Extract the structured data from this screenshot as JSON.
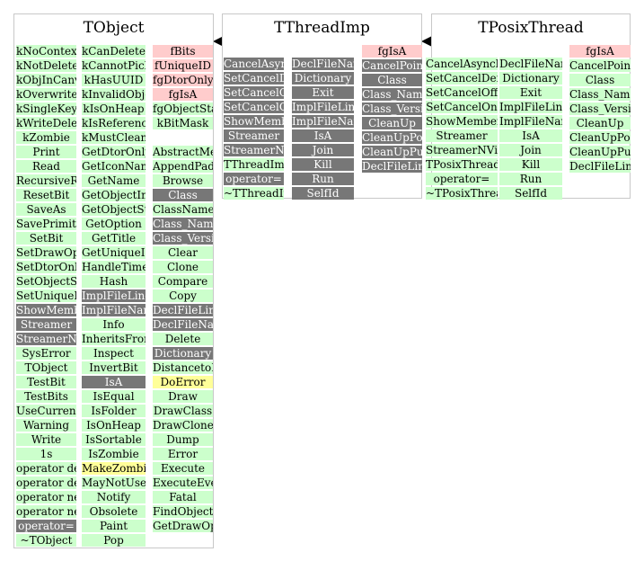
{
  "diagram": {
    "boxes": [
      {
        "title": "TObject",
        "columns": [
          [
            [
              "kNoContextMenu",
              "green"
            ],
            [
              "kNotDeleted",
              "green"
            ],
            [
              "kObjInCanvas",
              "green"
            ],
            [
              "kOverwrite",
              "green"
            ],
            [
              "kSingleKey",
              "green"
            ],
            [
              "kWriteDelete",
              "green"
            ],
            [
              "kZombie",
              "green"
            ],
            [
              "Print",
              "green"
            ],
            [
              "Read",
              "green"
            ],
            [
              "RecursiveRemove",
              "green"
            ],
            [
              "ResetBit",
              "green"
            ],
            [
              "SaveAs",
              "green"
            ],
            [
              "SavePrimitive",
              "green"
            ],
            [
              "SetBit",
              "green"
            ],
            [
              "SetDrawOption",
              "green"
            ],
            [
              "SetDtorOnly",
              "green"
            ],
            [
              "SetObjectStat",
              "green"
            ],
            [
              "SetUniqueID",
              "green"
            ],
            [
              "ShowMembers",
              "gray"
            ],
            [
              "Streamer",
              "gray"
            ],
            [
              "StreamerNVirtual",
              "gray"
            ],
            [
              "SysError",
              "green"
            ],
            [
              "TObject",
              "green"
            ],
            [
              "TestBit",
              "green"
            ],
            [
              "TestBits",
              "green"
            ],
            [
              "UseCurrentStyle",
              "green"
            ],
            [
              "Warning",
              "green"
            ],
            [
              "Write",
              "green"
            ],
            [
              "1s",
              "green"
            ],
            [
              "operator delete",
              "green"
            ],
            [
              "operator delete[]",
              "green"
            ],
            [
              "operator new",
              "green"
            ],
            [
              "operator new[]",
              "green"
            ],
            [
              "operator=",
              "gray"
            ],
            [
              "~TObject",
              "green"
            ]
          ],
          [
            [
              "kCanDelete",
              "green"
            ],
            [
              "kCannotPick",
              "green"
            ],
            [
              "kHasUUID",
              "green"
            ],
            [
              "kInvalidObject",
              "green"
            ],
            [
              "kIsOnHeap",
              "green"
            ],
            [
              "kIsReferenced",
              "green"
            ],
            [
              "kMustCleanup",
              "green"
            ],
            [
              "GetDtorOnly",
              "green"
            ],
            [
              "GetIconName",
              "green"
            ],
            [
              "GetName",
              "green"
            ],
            [
              "GetObjectInfo",
              "green"
            ],
            [
              "GetObjectStat",
              "green"
            ],
            [
              "GetOption",
              "green"
            ],
            [
              "GetTitle",
              "green"
            ],
            [
              "GetUniqueID",
              "green"
            ],
            [
              "HandleTimer",
              "green"
            ],
            [
              "Hash",
              "green"
            ],
            [
              "ImplFileLine",
              "gray"
            ],
            [
              "ImplFileName",
              "gray"
            ],
            [
              "Info",
              "green"
            ],
            [
              "InheritsFrom",
              "green"
            ],
            [
              "Inspect",
              "green"
            ],
            [
              "InvertBit",
              "green"
            ],
            [
              "IsA",
              "gray"
            ],
            [
              "IsEqual",
              "green"
            ],
            [
              "IsFolder",
              "green"
            ],
            [
              "IsOnHeap",
              "green"
            ],
            [
              "IsSortable",
              "green"
            ],
            [
              "IsZombie",
              "green"
            ],
            [
              "MakeZombie",
              "yellow"
            ],
            [
              "MayNotUse",
              "green"
            ],
            [
              "Notify",
              "green"
            ],
            [
              "Obsolete",
              "green"
            ],
            [
              "Paint",
              "green"
            ],
            [
              "Pop",
              "green"
            ]
          ],
          [
            [
              "fBits",
              "pink"
            ],
            [
              "fUniqueID",
              "pink"
            ],
            [
              "fgDtorOnly",
              "pink"
            ],
            [
              "fgIsA",
              "pink"
            ],
            [
              "fgObjectStat",
              "green"
            ],
            [
              "kBitMask",
              "green"
            ],
            [
              "",
              ""
            ],
            [
              "AbstractMethod",
              "green"
            ],
            [
              "AppendPad",
              "green"
            ],
            [
              "Browse",
              "green"
            ],
            [
              "Class",
              "gray"
            ],
            [
              "ClassName",
              "green"
            ],
            [
              "Class_Name",
              "gray"
            ],
            [
              "Class_Version",
              "gray"
            ],
            [
              "Clear",
              "green"
            ],
            [
              "Clone",
              "green"
            ],
            [
              "Compare",
              "green"
            ],
            [
              "Copy",
              "green"
            ],
            [
              "DeclFileLine",
              "gray"
            ],
            [
              "DeclFileName",
              "gray"
            ],
            [
              "Delete",
              "green"
            ],
            [
              "Dictionary",
              "gray"
            ],
            [
              "DistancetoPrimitive",
              "green"
            ],
            [
              "DoError",
              "yellow"
            ],
            [
              "Draw",
              "green"
            ],
            [
              "DrawClass",
              "green"
            ],
            [
              "DrawClone",
              "green"
            ],
            [
              "Dump",
              "green"
            ],
            [
              "Error",
              "green"
            ],
            [
              "Execute",
              "green"
            ],
            [
              "ExecuteEvent",
              "green"
            ],
            [
              "Fatal",
              "green"
            ],
            [
              "FindObject",
              "green"
            ],
            [
              "GetDrawOption",
              "green"
            ]
          ]
        ]
      },
      {
        "title": "TThreadImp",
        "columns": [
          [
            [
              "CancelAsynchronous",
              "gray"
            ],
            [
              "SetCancelDeferred",
              "gray"
            ],
            [
              "SetCancelOff",
              "gray"
            ],
            [
              "SetCancelOn",
              "gray"
            ],
            [
              "ShowMembers",
              "gray"
            ],
            [
              "Streamer",
              "gray"
            ],
            [
              "StreamerNVirtual",
              "gray"
            ],
            [
              "TThreadImp",
              "green"
            ],
            [
              "operator=",
              "gray"
            ],
            [
              "~TThreadImp",
              "green"
            ]
          ],
          [
            [
              "DeclFileName",
              "gray"
            ],
            [
              "Dictionary",
              "gray"
            ],
            [
              "Exit",
              "gray"
            ],
            [
              "ImplFileLine",
              "gray"
            ],
            [
              "ImplFileName",
              "gray"
            ],
            [
              "IsA",
              "gray"
            ],
            [
              "Join",
              "gray"
            ],
            [
              "Kill",
              "gray"
            ],
            [
              "Run",
              "gray"
            ],
            [
              "SelfId",
              "gray"
            ]
          ],
          [
            [
              "fgIsA",
              "pink"
            ],
            [
              "CancelPoint",
              "gray"
            ],
            [
              "Class",
              "gray"
            ],
            [
              "Class_Name",
              "gray"
            ],
            [
              "Class_Version",
              "gray"
            ],
            [
              "CleanUp",
              "gray"
            ],
            [
              "CleanUpPop",
              "gray"
            ],
            [
              "CleanUpPush",
              "gray"
            ],
            [
              "DeclFileLine",
              "gray"
            ]
          ]
        ]
      },
      {
        "title": "TPosixThread",
        "columns": [
          [
            [
              "CancelAsynchronous",
              "green"
            ],
            [
              "SetCancelDeferred",
              "green"
            ],
            [
              "SetCancelOff",
              "green"
            ],
            [
              "SetCancelOn",
              "green"
            ],
            [
              "ShowMembers",
              "green"
            ],
            [
              "Streamer",
              "green"
            ],
            [
              "StreamerNVirtual",
              "green"
            ],
            [
              "TPosixThread",
              "green"
            ],
            [
              "operator=",
              "green"
            ],
            [
              "~TPosixThread",
              "green"
            ]
          ],
          [
            [
              "DeclFileName",
              "green"
            ],
            [
              "Dictionary",
              "green"
            ],
            [
              "Exit",
              "green"
            ],
            [
              "ImplFileLine",
              "green"
            ],
            [
              "ImplFileName",
              "green"
            ],
            [
              "IsA",
              "green"
            ],
            [
              "Join",
              "green"
            ],
            [
              "Kill",
              "green"
            ],
            [
              "Run",
              "green"
            ],
            [
              "SelfId",
              "green"
            ]
          ],
          [
            [
              "fgIsA",
              "pink"
            ],
            [
              "CancelPoint",
              "green"
            ],
            [
              "Class",
              "green"
            ],
            [
              "Class_Name",
              "green"
            ],
            [
              "Class_Version",
              "green"
            ],
            [
              "CleanUp",
              "green"
            ],
            [
              "CleanUpPop",
              "green"
            ],
            [
              "CleanUpPush",
              "green"
            ],
            [
              "DeclFileLine",
              "green"
            ]
          ]
        ]
      }
    ],
    "colors": {
      "green": "#ccffcc",
      "pink": "#ffcccc",
      "gray": "#777777",
      "yellow": "#ffff99",
      "border": "#c8c8c8"
    }
  }
}
